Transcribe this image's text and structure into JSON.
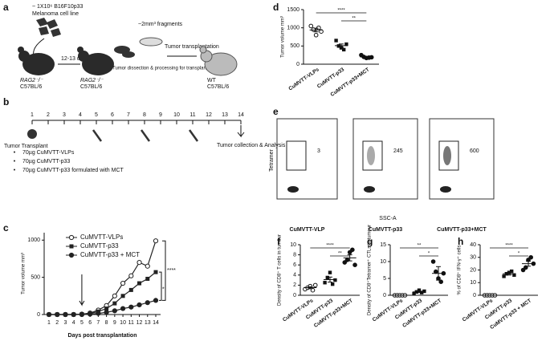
{
  "panel_a": {
    "label": "a",
    "cells": "~ 1X10⁶ B16F10p33",
    "cell_line": "Melanoma cell line",
    "days": "12-13 days",
    "mouse1": "RAG2⁻/⁻",
    "strain1": "C57BL/6",
    "mouse2": "RAG2⁻/⁻",
    "strain2": "C57BL/6",
    "dissection": "Tumor dissection & processing for transplantation",
    "fragments": "~2mm³ fragments",
    "transplantation": "Tumor transplantation",
    "mouse3": "WT",
    "strain3": "C57BL/6"
  },
  "panel_b": {
    "label": "b",
    "days": [
      1,
      2,
      3,
      4,
      5,
      6,
      7,
      8,
      9,
      10,
      11,
      12,
      13,
      14
    ],
    "start": "Tumor Transplant",
    "end": "Tumor collection & Analysis",
    "treatments": [
      "70µg CuMVTT-VLPs",
      "70µg CuMVTT-p33",
      "70µg CuMVTT-p33 formulated with MCT"
    ]
  },
  "panel_e": {
    "label": "e",
    "y_label": "Tetramer",
    "x_label": "SSC-A",
    "plots": [
      {
        "name": "CuMVTT-VLP",
        "count": 3
      },
      {
        "name": "CuMVTT-p33",
        "count": 245
      },
      {
        "name": "CuMVTT-p33+MCT",
        "count": 600
      }
    ]
  },
  "chart_data": [
    {
      "type": "line",
      "label": "c",
      "y_label": "Tumor volume mm³",
      "x_label": "Days post transplantation",
      "categories": [
        "1",
        "2",
        "3",
        "4",
        "5",
        "6",
        "7",
        "8",
        "9",
        "10",
        "11",
        "12",
        "13",
        "14"
      ],
      "ylim": [
        0,
        1100
      ],
      "yticks": [
        0,
        500,
        1000
      ],
      "annotations": [
        "****",
        "*"
      ],
      "series": [
        {
          "name": "CuMVTT-VLPs",
          "color": "#222",
          "values": [
            0,
            0,
            0,
            0,
            5,
            20,
            60,
            120,
            250,
            420,
            520,
            700,
            650,
            990
          ]
        },
        {
          "name": "CuMVTT-p33",
          "color": "#222",
          "values": [
            0,
            0,
            0,
            0,
            5,
            15,
            40,
            80,
            150,
            250,
            330,
            420,
            480,
            570
          ]
        },
        {
          "name": "CuMVTT-p33 + MCT",
          "color": "#222",
          "values": [
            0,
            0,
            0,
            0,
            0,
            5,
            15,
            30,
            50,
            80,
            100,
            130,
            160,
            190
          ]
        }
      ]
    },
    {
      "type": "dot",
      "label": "d",
      "y_label": "Tumor volume mm³",
      "categories": [
        "CuMVTT-VLPs",
        "CuMVTT-p33",
        "CuMVTT-p33+MCT"
      ],
      "ylim": [
        0,
        1500
      ],
      "yticks": [
        0,
        500,
        1000,
        1500
      ],
      "annotations": [
        "****",
        "**"
      ],
      "values": [
        [
          1050,
          950,
          800,
          1000,
          900
        ],
        [
          650,
          500,
          450,
          400,
          550
        ],
        [
          250,
          200,
          170,
          180,
          190
        ]
      ],
      "means": [
        940,
        510,
        200
      ],
      "errors": [
        50,
        45,
        15
      ]
    },
    {
      "type": "dot",
      "label": "f",
      "y_label": "Density of CD8⁺ T cells in tumour",
      "categories": [
        "CuMVTT-VLPs",
        "CuMVTT-p33",
        "CuMVTT-p33+MCT"
      ],
      "ylim": [
        0,
        10
      ],
      "yticks": [
        0,
        2,
        4,
        6,
        8,
        10
      ],
      "annotations": [
        "****",
        "**"
      ],
      "values": [
        [
          1.2,
          1.5,
          1.8,
          1.0,
          2.0
        ],
        [
          2.5,
          3.5,
          4.5,
          2.2,
          3.0
        ],
        [
          6.5,
          7.0,
          8.5,
          9.0,
          6.0
        ]
      ],
      "means": [
        1.5,
        3.1,
        7.4
      ],
      "errors": [
        0.2,
        0.5,
        0.6
      ]
    },
    {
      "type": "dot",
      "label": "g",
      "y_label": "Density of CD8⁺Tetramer⁺ CTLs in tumour",
      "categories": [
        "CuMVTT-VLPs",
        "CuMVTT-p33",
        "CuMVTT-p33+MCT"
      ],
      "ylim": [
        0,
        15
      ],
      "yticks": [
        0,
        5,
        10,
        15
      ],
      "annotations": [
        "**",
        "*"
      ],
      "values": [
        [
          0,
          0,
          0,
          0,
          0
        ],
        [
          0.5,
          1,
          1.5,
          0.8,
          1.2
        ],
        [
          10,
          7,
          5,
          4,
          6.5
        ]
      ],
      "means": [
        0,
        1,
        6.5
      ],
      "errors": [
        0,
        0.2,
        2
      ]
    },
    {
      "type": "dot",
      "label": "h",
      "y_label": "% of CD8⁺ IFN-γ⁺ cells",
      "categories": [
        "CuMVTT-VLPs",
        "CuMVTT-p33",
        "CuMVTT-p33 + MCT"
      ],
      "ylim": [
        0,
        40
      ],
      "yticks": [
        0,
        10,
        20,
        30,
        40
      ],
      "annotations": [
        "****",
        "*"
      ],
      "values": [
        [
          0,
          0,
          0,
          0,
          0
        ],
        [
          15,
          17,
          18,
          19,
          16
        ],
        [
          20,
          22,
          28,
          30,
          25
        ]
      ],
      "means": [
        0,
        17,
        25
      ],
      "errors": [
        0,
        1,
        2
      ]
    }
  ]
}
